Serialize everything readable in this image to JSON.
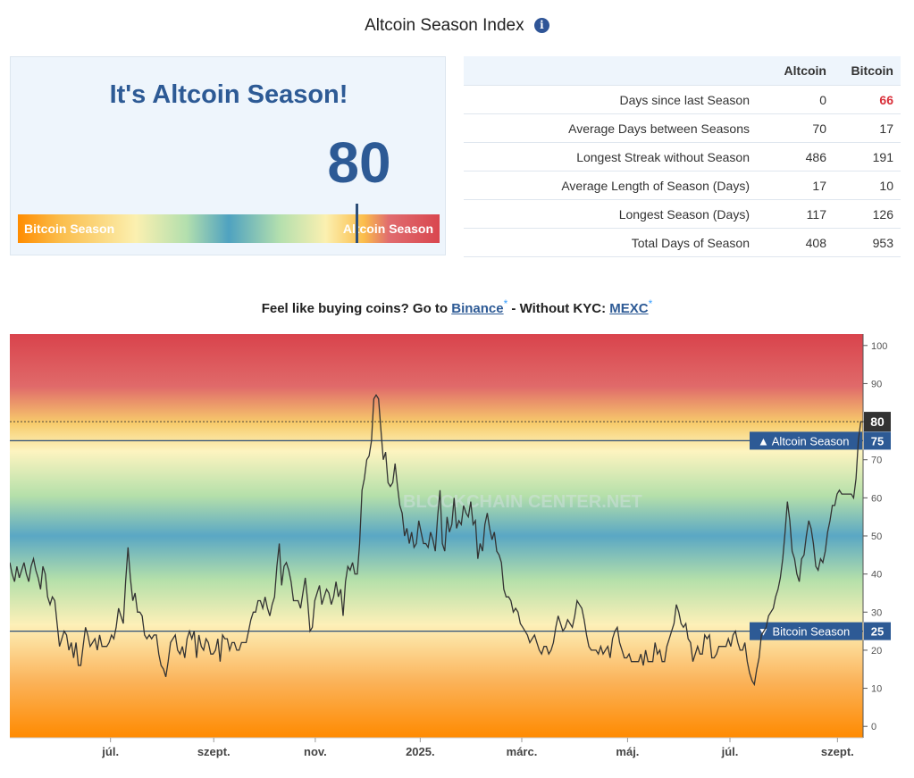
{
  "page": {
    "title": "Altcoin Season Index",
    "info_icon": "i",
    "season_heading": "It's Altcoin Season!",
    "index_value": "80"
  },
  "gauge": {
    "left_label": "Bitcoin Season",
    "right_label": "Altcoin Season",
    "position_fraction": 0.8
  },
  "stats": {
    "columns": [
      "Altcoin",
      "Bitcoin"
    ],
    "rows": [
      {
        "label": "Days since last Season",
        "altcoin": "0",
        "bitcoin": "66"
      },
      {
        "label": "Average Days between Seasons",
        "altcoin": "70",
        "bitcoin": "17"
      },
      {
        "label": "Longest Streak without Season",
        "altcoin": "486",
        "bitcoin": "191"
      },
      {
        "label": "Average Length of Season (Days)",
        "altcoin": "17",
        "bitcoin": "10"
      },
      {
        "label": "Longest Season (Days)",
        "altcoin": "117",
        "bitcoin": "126"
      },
      {
        "label": "Total Days of Season",
        "altcoin": "408",
        "bitcoin": "953"
      }
    ]
  },
  "promo": {
    "text1": "Feel like buying coins? Go to ",
    "link1": "Binance",
    "mark1": "*",
    "text2": " - Without KYC: ",
    "link2": "MEXC",
    "mark2": "*"
  },
  "colors": {
    "accent": "#2d5a95",
    "altcoin_red": "#d9474f",
    "bitcoin_orange": "#ff8c00",
    "middle_blue": "#4fa2c0",
    "line": "#333333"
  },
  "chart_data": {
    "type": "line",
    "ylim": [
      -3,
      103
    ],
    "yticks": [
      0,
      10,
      20,
      30,
      40,
      50,
      60,
      70,
      80,
      90,
      100
    ],
    "xticks": [
      "júl.",
      "szept.",
      "nov.",
      "2025.",
      "márc.",
      "máj.",
      "júl.",
      "szept."
    ],
    "x_tick_positions": [
      0.118,
      0.239,
      0.358,
      0.481,
      0.6,
      0.724,
      0.844,
      0.97
    ],
    "grid": false,
    "watermark": "BLOCKCHAIN CENTER.NET",
    "thresholds": [
      {
        "label": "▲ Altcoin Season",
        "value": 75
      },
      {
        "label": "▼ Bitcoin Season",
        "value": 25
      }
    ],
    "current": {
      "value": 80,
      "label": "80"
    },
    "series": [
      {
        "values": [
          43,
          40,
          38,
          42,
          39,
          41,
          43,
          40,
          38,
          42,
          44,
          41,
          39,
          36,
          42,
          40,
          34,
          32,
          34,
          33,
          27,
          21,
          23,
          25,
          24,
          20,
          22,
          18,
          22,
          16,
          16,
          21,
          26,
          24,
          21,
          22,
          23,
          20,
          24,
          21,
          21,
          21,
          22,
          24,
          23,
          26,
          31,
          29,
          27,
          38,
          47,
          39,
          33,
          35,
          30,
          30,
          29,
          24,
          23,
          24,
          23,
          24,
          24,
          19,
          16,
          15,
          13,
          17,
          22,
          23,
          24,
          20,
          19,
          21,
          18,
          23,
          25,
          23,
          25,
          18,
          24,
          21,
          20,
          23,
          22,
          19,
          19,
          20,
          23,
          17,
          24,
          23,
          23,
          20,
          22,
          22,
          20,
          20,
          22,
          22,
          22,
          25,
          28,
          30,
          30,
          33,
          33,
          31,
          34,
          31,
          29,
          32,
          34,
          42,
          48,
          37,
          42,
          43,
          41,
          38,
          33,
          33,
          33,
          31,
          35,
          39,
          33,
          25,
          26,
          33,
          35,
          37,
          32,
          34,
          36,
          35,
          32,
          34,
          38,
          34,
          36,
          29,
          38,
          42,
          41,
          43,
          40,
          40,
          48,
          62,
          65,
          70,
          71,
          75,
          86,
          87,
          86,
          78,
          70,
          72,
          64,
          63,
          64,
          69,
          63,
          58,
          56,
          50,
          52,
          48,
          51,
          47,
          48,
          54,
          51,
          48,
          48,
          47,
          51,
          49,
          46,
          55,
          62,
          48,
          46,
          55,
          51,
          53,
          60,
          52,
          54,
          53,
          58,
          56,
          55,
          59,
          53,
          54,
          44,
          48,
          46,
          53,
          56,
          52,
          49,
          51,
          46,
          45,
          43,
          36,
          34,
          34,
          33,
          30,
          31,
          30,
          27,
          26,
          25,
          24,
          22,
          23,
          24,
          22,
          20,
          19,
          21,
          21,
          19,
          20,
          22,
          26,
          29,
          27,
          25,
          26,
          28,
          27,
          26,
          29,
          33,
          32,
          31,
          28,
          24,
          21,
          20,
          20,
          20,
          19,
          21,
          19,
          20,
          21,
          18,
          23,
          25,
          26,
          22,
          20,
          18,
          18,
          19,
          17,
          17,
          17,
          17,
          19,
          16,
          20,
          17,
          17,
          17,
          22,
          19,
          20,
          17,
          17,
          21,
          23,
          25,
          27,
          32,
          30,
          27,
          26,
          27,
          23,
          22,
          17,
          19,
          21,
          19,
          19,
          24,
          23,
          24,
          18,
          18,
          19,
          21,
          21,
          21,
          21,
          23,
          21,
          24,
          25,
          22,
          20,
          20,
          22,
          17,
          14,
          12,
          11,
          15,
          18,
          24,
          25,
          26,
          29,
          30,
          31,
          34,
          36,
          39,
          44,
          51,
          59,
          54,
          46,
          44,
          40,
          38,
          44,
          45,
          50,
          54,
          52,
          48,
          42,
          41,
          44,
          43,
          46,
          51,
          54,
          58,
          58,
          61,
          62,
          61,
          61,
          61,
          61,
          61,
          60,
          65,
          75,
          80,
          80
        ]
      }
    ]
  }
}
